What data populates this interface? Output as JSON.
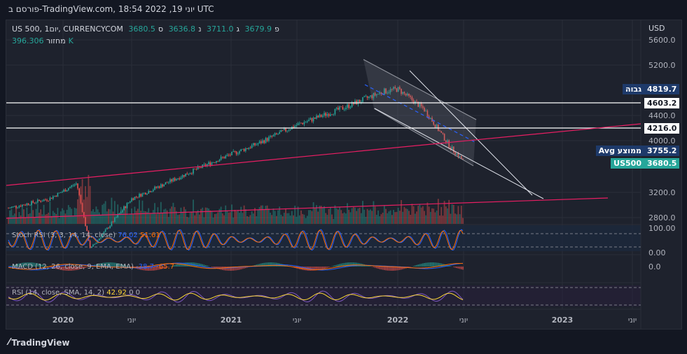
{
  "header": {
    "snapshot_text": "פורסם ב-TradingView.com, 18:54 2022 ,19 יוני UTC"
  },
  "legend": {
    "symbol": "US 500, 1יום, CURRENCYCOM",
    "open_label": "פ",
    "open": "3679.9",
    "high_label": "ג",
    "high": "3711.0",
    "low_label": "נ",
    "low": "3636.8",
    "close_label": "ס",
    "close": "3680.5",
    "volume_label": "מחזור",
    "volume": "396.306K"
  },
  "price_axis": {
    "currency": "USD",
    "ticks": [
      "5600.0",
      "5200.0",
      "4400.0",
      "4000.0",
      "3200.0",
      "2800.0"
    ]
  },
  "time_axis": {
    "ticks": [
      "2020",
      "יוני",
      "2021",
      "יוני",
      "2022",
      "יוני",
      "2023",
      "יוני"
    ]
  },
  "price_tags": [
    {
      "name": "גבוה",
      "value": "4819.7",
      "bg": "#1e3a6a"
    },
    {
      "name": "",
      "value": "4603.2",
      "bg": "#ffffff"
    },
    {
      "name": "",
      "value": "4216.0",
      "bg": "#ffffff"
    },
    {
      "name": "Avg ממוצע",
      "value": "3755.2",
      "bg": "#1e3a6a"
    },
    {
      "name": "US500",
      "value": "3680.5",
      "bg": "#26a69a"
    }
  ],
  "indicators": {
    "stoch": {
      "label": "Stoch RSI (3, 3, 14, 14, close)",
      "k": "76.02",
      "d": "51.61",
      "levels": [
        "100.00",
        "0.00"
      ]
    },
    "macd": {
      "label": "MACD (12, 26, close, 9, EMA, EMA)",
      "v1": "-38.7",
      "v2": "-65.7",
      "level": "0.0"
    },
    "rsi": {
      "label": "RSI (14, close, SMA, 14, 2)",
      "v1": "42.92",
      "v2": "0",
      "v3": "0"
    }
  },
  "chart_data": {
    "type": "line",
    "title": "US 500, 1יום, CURRENCYCOM",
    "x": [
      "2019-09",
      "2019-12",
      "2020-02",
      "2020-03",
      "2020-06",
      "2020-09",
      "2020-12",
      "2021-03",
      "2021-06",
      "2021-09",
      "2021-12",
      "2022-01",
      "2022-03",
      "2022-05",
      "2022-06"
    ],
    "series": [
      {
        "values": [
          2950,
          3100,
          3340,
          2300,
          3100,
          3400,
          3700,
          3950,
          4250,
          4500,
          4780,
          4819.7,
          4500,
          3900,
          3680.5
        ]
      }
    ],
    "horizontal_levels": [
      4603.2,
      4216.0
    ],
    "ylim": [
      2700,
      5700
    ]
  },
  "footer": {
    "brand": "TradingView"
  },
  "colors": {
    "up": "#26a69a",
    "down": "#ef5350",
    "trend": "#e91e63",
    "bg": "#1e222d"
  }
}
